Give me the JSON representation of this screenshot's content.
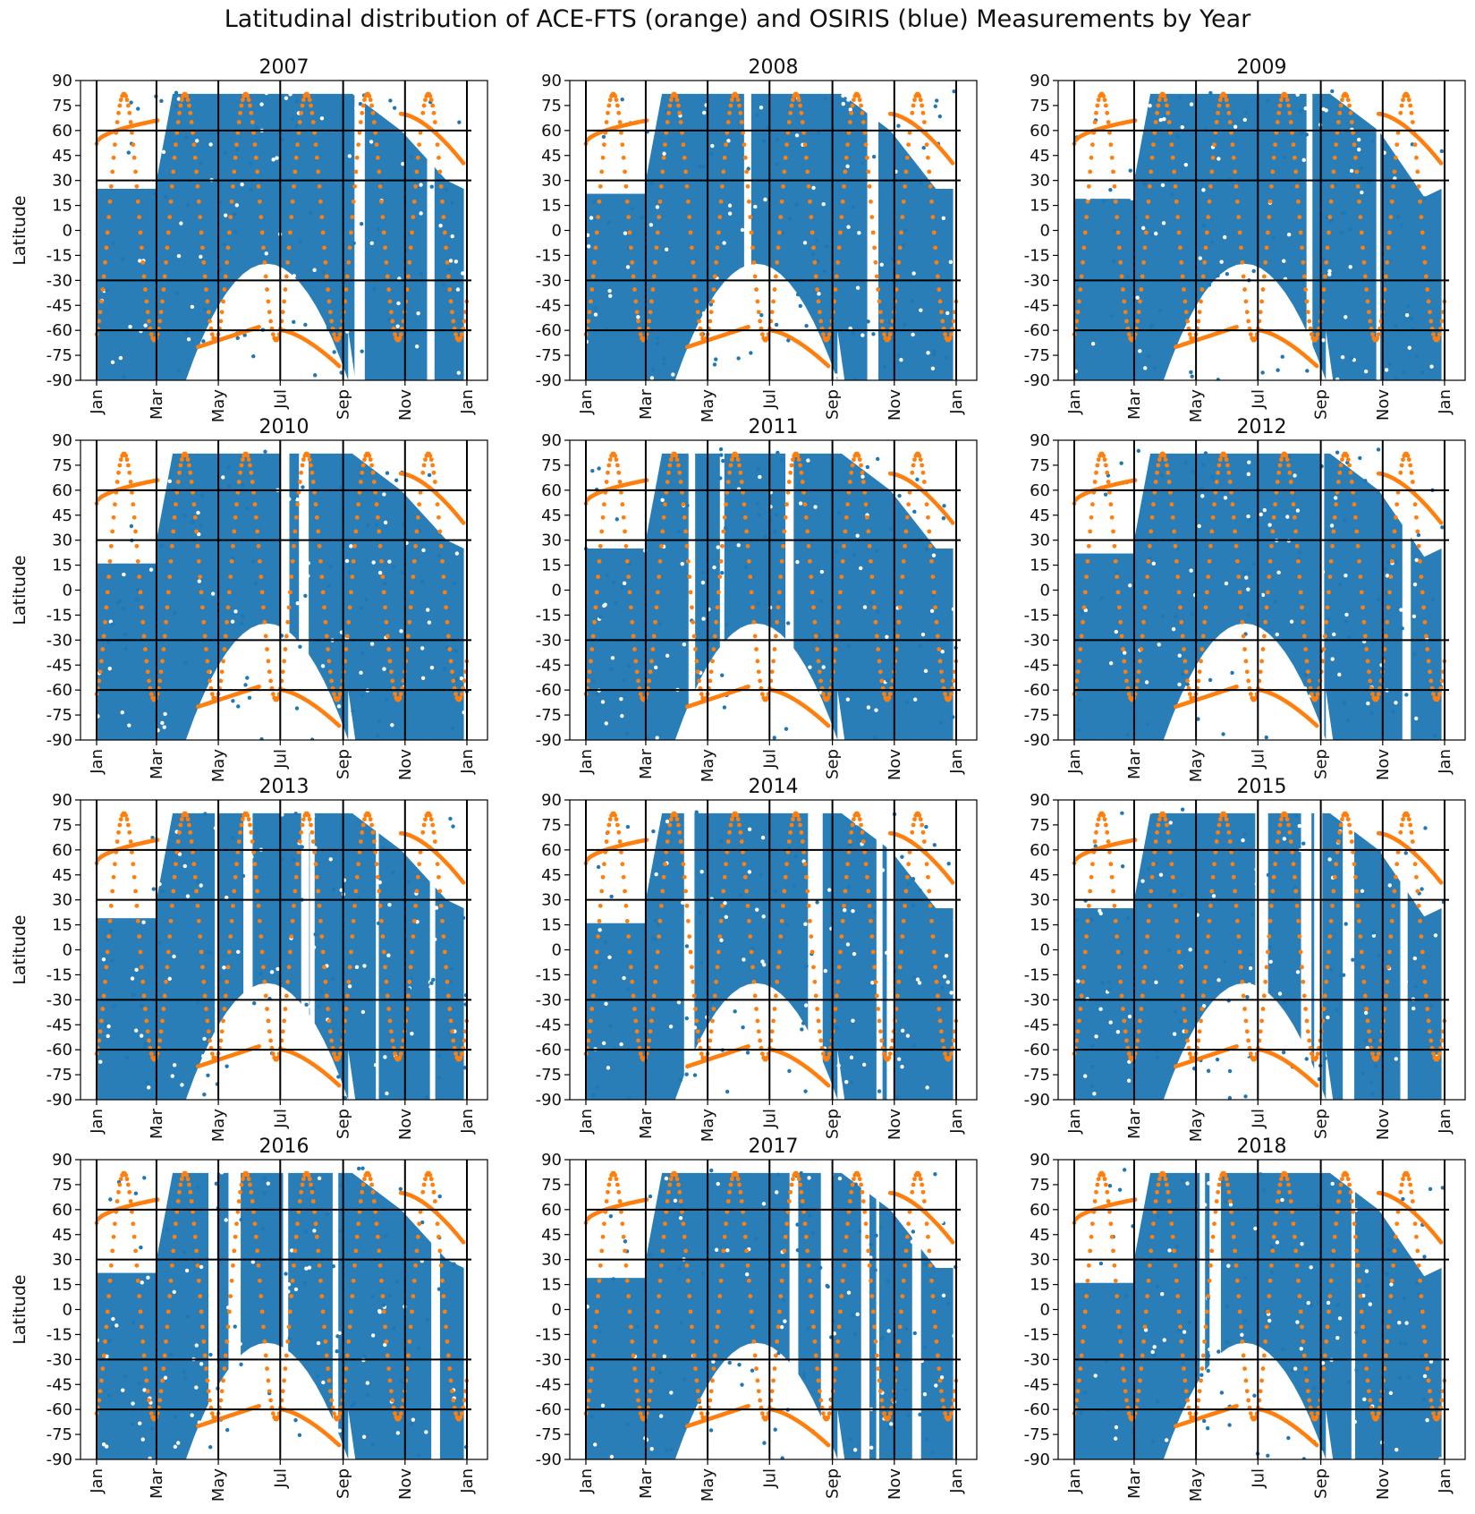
{
  "figure": {
    "title": "Latitudinal distribution of ACE-FTS (orange) and OSIRIS (blue) Measurements by Year"
  },
  "colors": {
    "osiris": "#1f77b4",
    "ace": "#ff7f0e",
    "gridline": "#000000"
  },
  "chart_data": {
    "type": "scatter",
    "ylabel": "Latitude",
    "ylim": [
      -90,
      90
    ],
    "yticks": [
      "90",
      "75",
      "60",
      "45",
      "30",
      "15",
      "0",
      "-15",
      "-30",
      "-45",
      "-60",
      "-75",
      "-90"
    ],
    "xticks": [
      "Jan",
      "Mar",
      "May",
      "Jul",
      "Sep",
      "Nov",
      "Jan"
    ],
    "reference_lines_lat": [
      60,
      30,
      -30,
      -60
    ],
    "series": [
      {
        "name": "OSIRIS",
        "color": "#1f77b4"
      },
      {
        "name": "ACE-FTS",
        "color": "#ff7f0e"
      }
    ],
    "panels": [
      {
        "year": "2007"
      },
      {
        "year": "2008"
      },
      {
        "year": "2009"
      },
      {
        "year": "2010"
      },
      {
        "year": "2011"
      },
      {
        "year": "2012"
      },
      {
        "year": "2013"
      },
      {
        "year": "2014"
      },
      {
        "year": "2015"
      },
      {
        "year": "2016"
      },
      {
        "year": "2017"
      },
      {
        "year": "2018"
      }
    ]
  }
}
